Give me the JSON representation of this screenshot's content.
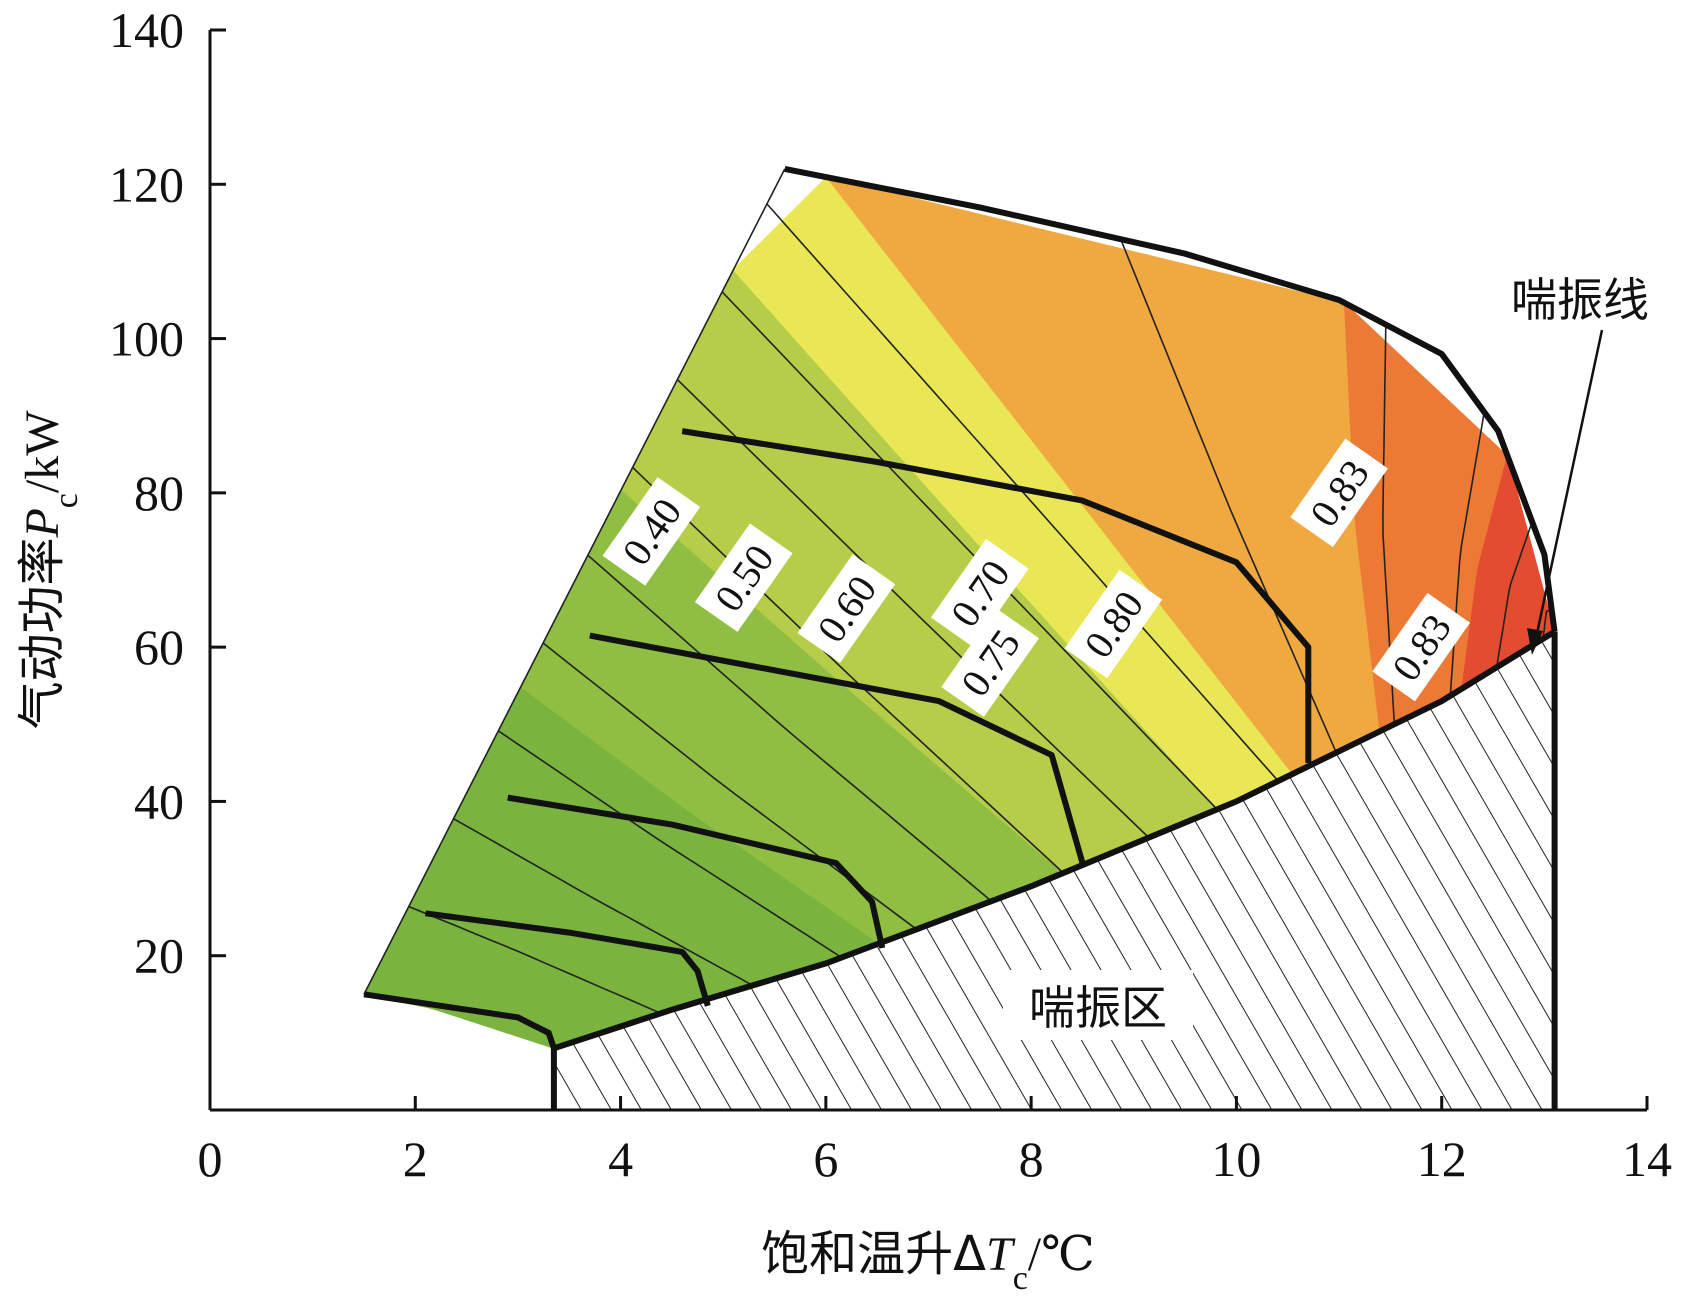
{
  "chart_data": {
    "type": "contour",
    "x_axis": {
      "ticks": [
        "0",
        "2",
        "4",
        "6",
        "8",
        "10",
        "12",
        "14"
      ],
      "title_prefix": "饱和温升Δ",
      "title_symbol": "T",
      "title_sub": "c",
      "title_suffix": "/℃",
      "range": [
        0,
        14
      ]
    },
    "y_axis": {
      "ticks": [
        "20",
        "40",
        "60",
        "80",
        "100",
        "120",
        "140"
      ],
      "title_prefix": "气动功率",
      "title_symbol": "P",
      "title_sub": "c",
      "title_suffix": "/kW",
      "range": [
        0,
        140
      ]
    },
    "colors": {
      "band_040_050": "#7ab33d",
      "band_050_060": "#8fbe42",
      "band_060_070": "#b5cd49",
      "band_070_075": "#e9e755",
      "band_075_080": "#f0a940",
      "band_080_083": "#ec7a35",
      "band_083_peak": "#e44c31",
      "hatch": "#222222"
    },
    "map_boundary": {
      "top": [
        [
          5.6,
          122
        ],
        [
          7.5,
          117
        ],
        [
          9.5,
          111
        ],
        [
          11,
          105
        ],
        [
          12,
          98
        ],
        [
          12.55,
          88
        ],
        [
          13.0,
          72
        ],
        [
          13.1,
          62
        ]
      ],
      "surge_line": [
        [
          3.35,
          8
        ],
        [
          4.5,
          13
        ],
        [
          6.0,
          19
        ],
        [
          8.0,
          29
        ],
        [
          10,
          40
        ],
        [
          12,
          53
        ],
        [
          13.1,
          62
        ]
      ],
      "low_speed": [
        [
          1.5,
          15
        ],
        [
          2.5,
          13
        ],
        [
          3.0,
          12
        ],
        [
          3.3,
          10
        ],
        [
          3.35,
          8
        ]
      ]
    },
    "speed_lines": [
      [
        [
          2.1,
          25.5
        ],
        [
          3.5,
          23
        ],
        [
          4.6,
          20.5
        ],
        [
          4.75,
          18
        ],
        [
          4.85,
          13.5
        ]
      ],
      [
        [
          2.9,
          40.5
        ],
        [
          4.5,
          37
        ],
        [
          6.1,
          32
        ],
        [
          6.45,
          27
        ],
        [
          6.55,
          21
        ]
      ],
      [
        [
          3.7,
          61.5
        ],
        [
          5.5,
          57
        ],
        [
          7.1,
          53
        ],
        [
          8.2,
          46
        ],
        [
          8.5,
          32
        ]
      ],
      [
        [
          4.6,
          88
        ],
        [
          6.5,
          84
        ],
        [
          8.5,
          79
        ],
        [
          10.0,
          71
        ],
        [
          10.7,
          60
        ],
        [
          10.7,
          45
        ]
      ]
    ],
    "efficiency_labels": [
      {
        "text": "0.40",
        "x": 4.3,
        "y": 75
      },
      {
        "text": "0.50",
        "x": 5.2,
        "y": 69
      },
      {
        "text": "0.60",
        "x": 6.2,
        "y": 65
      },
      {
        "text": "0.70",
        "x": 7.5,
        "y": 67
      },
      {
        "text": "0.75",
        "x": 7.6,
        "y": 58
      },
      {
        "text": "0.80",
        "x": 8.8,
        "y": 63
      },
      {
        "text": "0.83",
        "x": 11.0,
        "y": 80
      },
      {
        "text": "0.83",
        "x": 11.8,
        "y": 60
      }
    ],
    "annotations": {
      "surge_line_label": "喘振线",
      "surge_zone_label": "喘振区"
    }
  }
}
